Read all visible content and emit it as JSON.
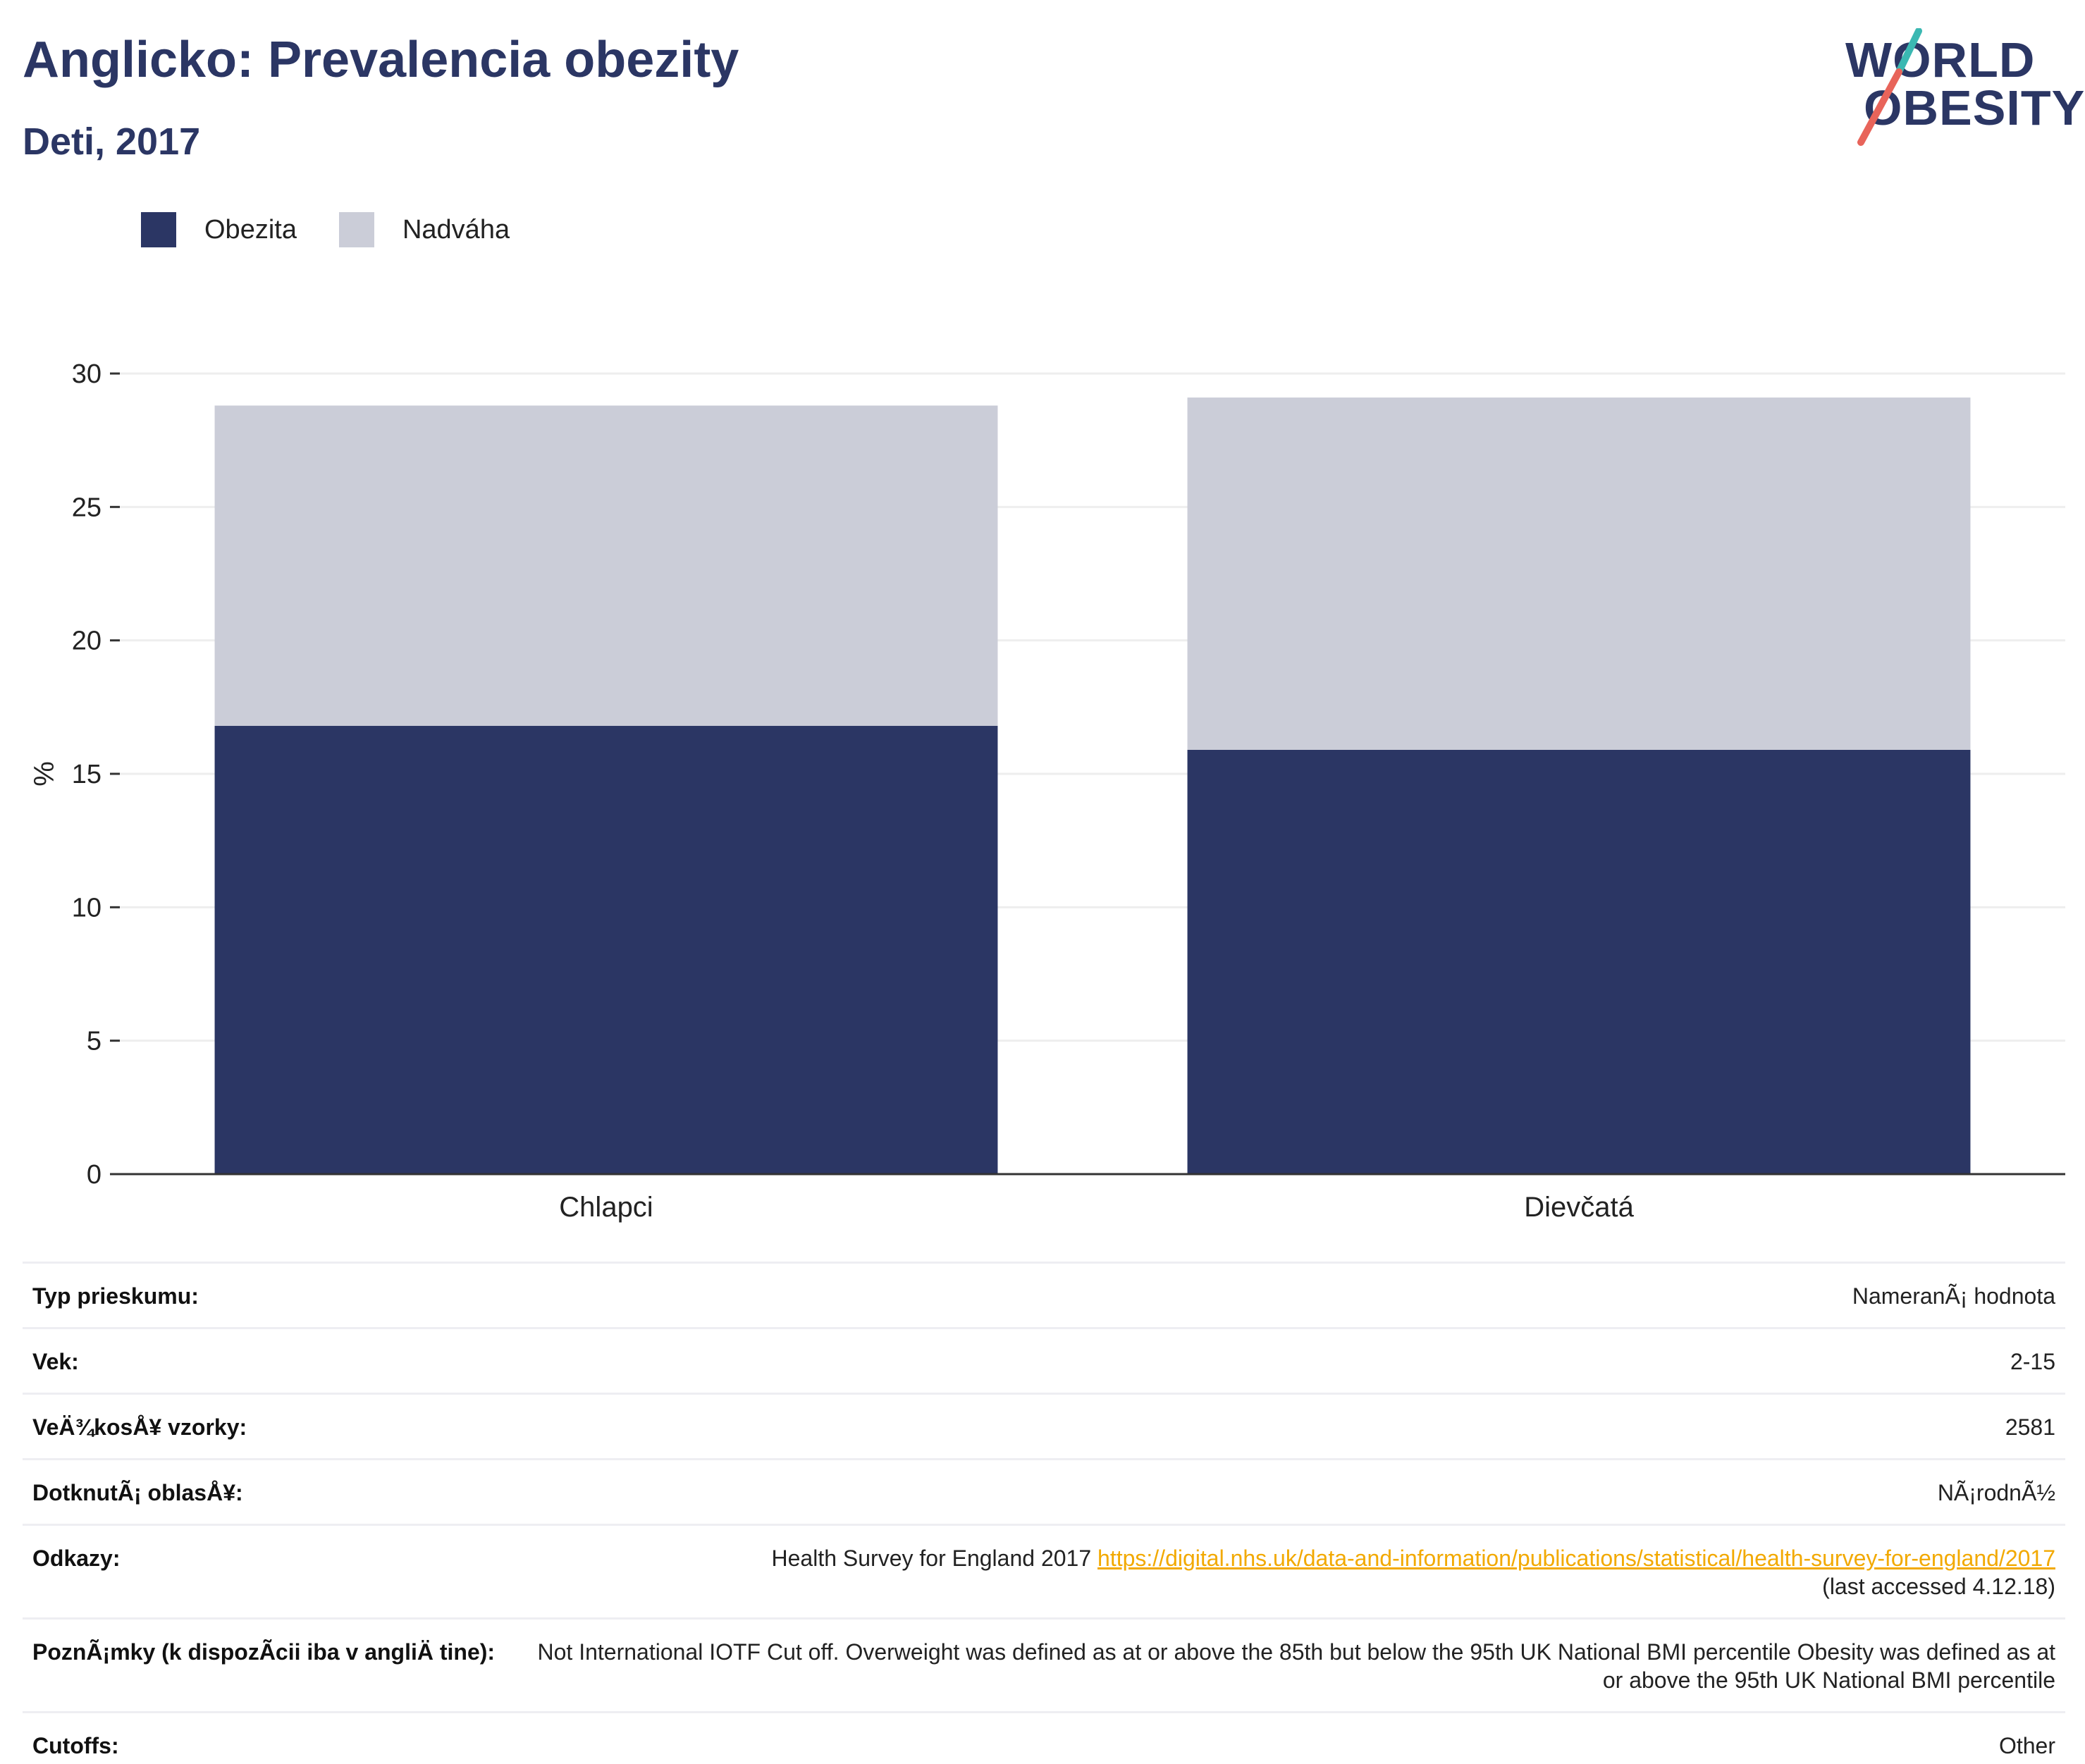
{
  "header": {
    "title": "Anglicko: Prevalencia obezity",
    "subtitle": "Deti, 2017"
  },
  "logo": {
    "line1": "WORLD",
    "line2": "OBESITY",
    "accent_teal": "#3bb8b2",
    "accent_coral": "#e8645a"
  },
  "colors": {
    "obesity": "#2b3664",
    "overweight": "#cbcdd8",
    "grid": "#eeeeee",
    "axis": "#333333"
  },
  "chart_data": {
    "type": "bar",
    "stacked": true,
    "categories": [
      "Chlapci",
      "Dievčatá"
    ],
    "series": [
      {
        "name": "Obezita",
        "values": [
          16.8,
          15.9
        ]
      },
      {
        "name": "Nadváha",
        "values": [
          12.0,
          13.2
        ]
      }
    ],
    "ylabel": "%",
    "ylim": [
      0,
      30
    ],
    "yticks": [
      0,
      5,
      10,
      15,
      20,
      25,
      30
    ],
    "grid": true,
    "legend_position": "top-left"
  },
  "info": [
    {
      "key": "Typ prieskumu:",
      "value": "NameranÃ¡ hodnota"
    },
    {
      "key": "Vek:",
      "value": "2-15"
    },
    {
      "key": "VeÄ¾kosÅ¥ vzorky:",
      "value": "2581"
    },
    {
      "key": "DotknutÃ¡ oblasÅ¥:",
      "value": "NÃ¡rodnÃ½"
    },
    {
      "key": "Odkazy:",
      "value": "Health Survey for England 2017",
      "link": "https://digital.nhs.uk/data-and-information/publications/statistical/health-survey-for-england/2017",
      "extra": "(last accessed 4.12.18)"
    },
    {
      "key": "PoznÃ¡mky (k dispozÃcii iba v angliÄ\u001f tine):",
      "value": "Not International IOTF Cut off. Overweight was defined as at or above the 85th but below the 95th UK National BMI percentile Obesity was defined as at or above the 95th UK National BMI percentile"
    },
    {
      "key": "Cutoffs:",
      "value": "Other"
    }
  ]
}
